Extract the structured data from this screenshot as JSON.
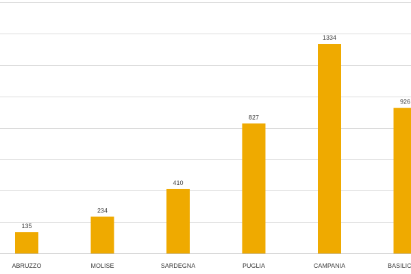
{
  "chart_data": {
    "type": "bar",
    "title": "",
    "xlabel": "",
    "ylabel": "",
    "categories": [
      "ABRUZZO",
      "MOLISE",
      "SARDEGNA",
      "PUGLIA",
      "CAMPANIA",
      "BASILICATA"
    ],
    "series": [
      {
        "values": [
          135,
          234,
          410,
          827,
          1334,
          926
        ]
      }
    ],
    "ylim": [
      0,
      1600
    ],
    "ytick_step": 200,
    "grid": true,
    "bar_color": "#EFAA00",
    "gridline_color": "#d9d9d9",
    "label_color": "#404040",
    "legend": "none"
  }
}
